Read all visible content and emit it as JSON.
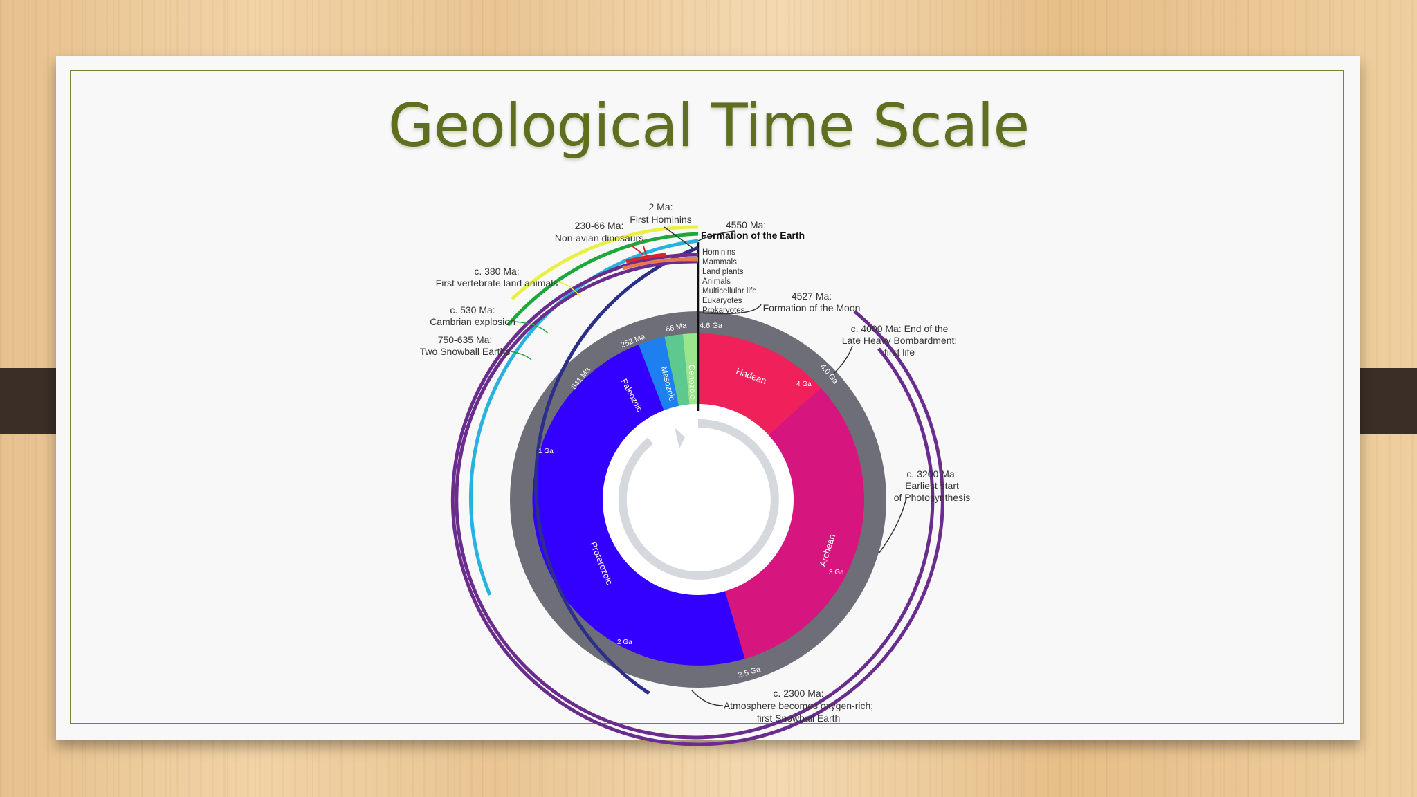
{
  "slide": {
    "title": "Geological Time Scale"
  },
  "colors": {
    "title": "#5f6f20",
    "border": "#74862d",
    "hadean": "#f0215a",
    "archean": "#d6157f",
    "proterozoic": "#3300ff",
    "paleozoic": "#1e7ff0",
    "mesozoic": "#5ec98e",
    "cenozoic": "#9be58c",
    "outer_ring": "#6e6e78",
    "inner_arrow": "#d5d9de"
  },
  "eons": {
    "hadean": "Hadean",
    "archean": "Archean",
    "proterozoic": "Proterozoic",
    "paleozoic": "Paleozoic",
    "mesozoic": "Mesozoic",
    "cenozoic": "Cenozoic"
  },
  "ring_labels": {
    "ma_66": "66 Ma",
    "ma_252": "252 Ma",
    "ma_541": "541 Ma",
    "ga_46": "4.6 Ga",
    "ga_40": "4.0 Ga",
    "ga_25": "2.5 Ga",
    "ga_4": "4 Ga",
    "ga_3": "3 Ga",
    "ga_2": "2 Ga",
    "ga_1": "1 Ga"
  },
  "life_labels": [
    "Hominins",
    "Mammals",
    "Land plants",
    "Animals",
    "Multicellular life",
    "Eukaryotes",
    "Prokaryotes"
  ],
  "annotations": {
    "hominins": {
      "date": "2 Ma:",
      "text": "First Hominins"
    },
    "dinosaurs": {
      "date": "230-66 Ma:",
      "text": "Non-avian dinosaurs"
    },
    "earth": {
      "date": "4550 Ma:",
      "text": "Formation of the Earth"
    },
    "land_animals": {
      "date": "c. 380 Ma:",
      "text": "First vertebrate land animals"
    },
    "moon": {
      "date": "4527 Ma:",
      "text": "Formation of the Moon"
    },
    "cambrian": {
      "date": "c. 530 Ma:",
      "text": "Cambrian explosion"
    },
    "bombardment": {
      "line1": "c. 4000 Ma: End of the",
      "line2": "Late Heavy Bombardment;",
      "line3": "first life"
    },
    "snowball": {
      "date": "750-635 Ma:",
      "text": "Two Snowball Earths"
    },
    "photosynthesis": {
      "line1": "c. 3200 Ma:",
      "line2": "Earliest start",
      "line3": "of Photosynthesis"
    },
    "oxygen": {
      "line1": "c. 2300 Ma:",
      "line2": "Atmosphere becomes oxygen-rich;",
      "line3": "first Snowball Earth"
    }
  }
}
